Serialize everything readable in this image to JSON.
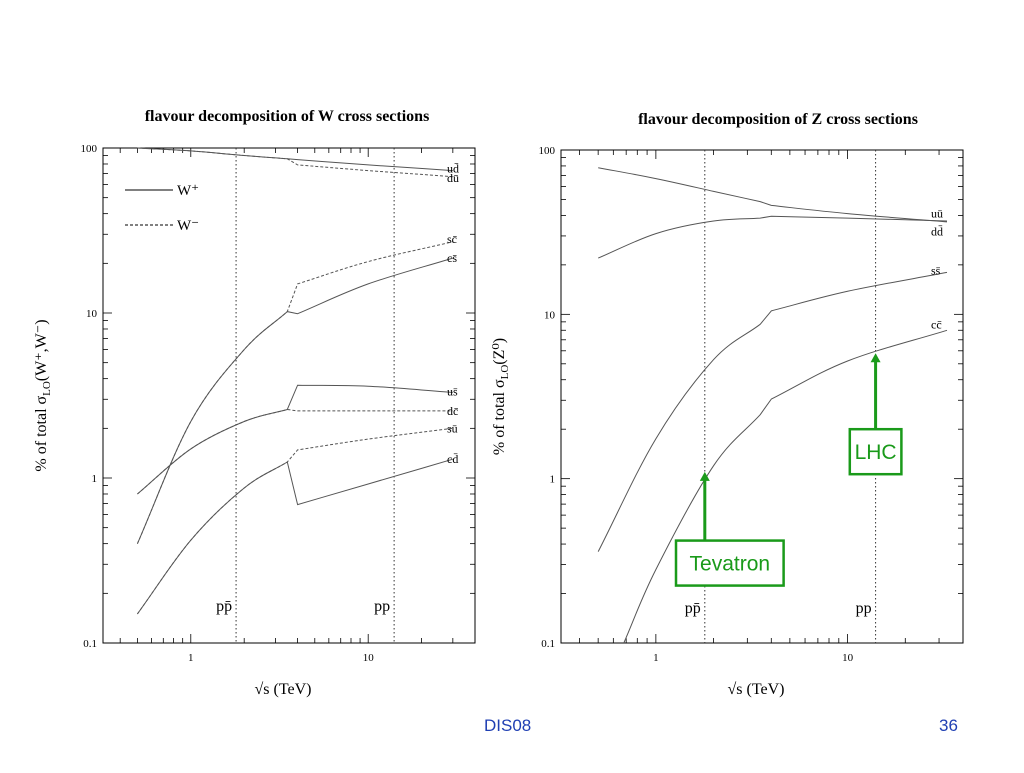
{
  "footer": {
    "center": "DIS08",
    "page": "36"
  },
  "colors": {
    "annotation": "#1a9a1a",
    "footer": "#1f3fb3",
    "curve": "#555555"
  },
  "chart_data": [
    {
      "id": "w",
      "type": "line",
      "title": "flavour decomposition of W cross sections",
      "xlabel": "√s   (TeV)",
      "ylabel_prefix": "% of total  σ",
      "ylabel_sub": "LO",
      "ylabel_suffix": "(W⁺,W⁻)",
      "x_scale": "log",
      "y_scale": "log",
      "xlim": [
        0.32,
        40
      ],
      "ylim": [
        0.1,
        100
      ],
      "x_ticks": [
        {
          "value": 1,
          "label": "1"
        },
        {
          "value": 10,
          "label": "10"
        }
      ],
      "y_ticks": [
        {
          "value": 0.1,
          "label": "0.1"
        },
        {
          "value": 1,
          "label": "1"
        },
        {
          "value": 10,
          "label": "10"
        },
        {
          "value": 100,
          "label": "100"
        }
      ],
      "vlines": [
        {
          "x": 1.8,
          "label": "pp̄"
        },
        {
          "x": 14,
          "label": "pp"
        }
      ],
      "legend": [
        {
          "name": "W⁺",
          "style": "solid"
        },
        {
          "name": "W⁻",
          "style": "dashed"
        }
      ],
      "series": [
        {
          "style": "solid",
          "points": [
            [
              0.5,
              100
            ],
            [
              1,
              96
            ],
            [
              2,
              90
            ],
            [
              3.5,
              86
            ],
            [
              4,
              85
            ],
            [
              10,
              79
            ],
            [
              30,
              73
            ]
          ]
        },
        {
          "style": "dashed",
          "points": [
            [
              0.5,
              100
            ],
            [
              1,
              96
            ],
            [
              2,
              90
            ],
            [
              3.5,
              86
            ],
            [
              4,
              79
            ],
            [
              10,
              73
            ],
            [
              30,
              67
            ]
          ]
        },
        {
          "style": "dashed",
          "points": [
            [
              0.5,
              0.4
            ],
            [
              1,
              2.2
            ],
            [
              2,
              6.0
            ],
            [
              3.5,
              10.2
            ],
            [
              4,
              15
            ],
            [
              10,
              20.5
            ],
            [
              30,
              27
            ]
          ]
        },
        {
          "style": "solid",
          "points": [
            [
              0.5,
              0.4
            ],
            [
              1,
              2.2
            ],
            [
              2,
              6.0
            ],
            [
              3.5,
              10.2
            ],
            [
              4,
              9.9
            ],
            [
              10,
              15
            ],
            [
              30,
              21.5
            ]
          ]
        },
        {
          "style": "solid",
          "points": [
            [
              0.5,
              0.8
            ],
            [
              1,
              1.5
            ],
            [
              2,
              2.2
            ],
            [
              3.5,
              2.6
            ],
            [
              4,
              3.65
            ],
            [
              10,
              3.6
            ],
            [
              30,
              3.3
            ]
          ]
        },
        {
          "style": "dashed",
          "points": [
            [
              0.5,
              0.8
            ],
            [
              1,
              1.5
            ],
            [
              2,
              2.2
            ],
            [
              3.5,
              2.6
            ],
            [
              4,
              2.55
            ],
            [
              10,
              2.55
            ],
            [
              30,
              2.55
            ]
          ]
        },
        {
          "style": "dashed",
          "points": [
            [
              0.5,
              0.15
            ],
            [
              1,
              0.42
            ],
            [
              2,
              0.87
            ],
            [
              3.5,
              1.25
            ],
            [
              4,
              1.48
            ],
            [
              10,
              1.72
            ],
            [
              30,
              2.0
            ]
          ]
        },
        {
          "style": "solid",
          "points": [
            [
              0.5,
              0.15
            ],
            [
              1,
              0.42
            ],
            [
              2,
              0.87
            ],
            [
              3.5,
              1.25
            ],
            [
              4,
              0.69
            ],
            [
              10,
              0.92
            ],
            [
              30,
              1.3
            ]
          ]
        }
      ],
      "curve_labels": [
        {
          "text": "ud̄",
          "y": 75
        },
        {
          "text": "dū",
          "y": 66
        },
        {
          "text": "sc̄",
          "y": 28
        },
        {
          "text": "cs̄",
          "y": 21.5
        },
        {
          "text": "us̄",
          "y": 3.35
        },
        {
          "text": "dc̄",
          "y": 2.55
        },
        {
          "text": "sū",
          "y": 2.0
        },
        {
          "text": "cd̄",
          "y": 1.3
        }
      ]
    },
    {
      "id": "z",
      "type": "line",
      "title": "flavour decomposition of Z cross sections",
      "xlabel": "√s   (TeV)",
      "ylabel_prefix": "% of total  σ",
      "ylabel_sub": "LO",
      "ylabel_suffix": "(Z⁰)",
      "x_scale": "log",
      "y_scale": "log",
      "xlim": [
        0.32,
        40
      ],
      "ylim": [
        0.1,
        100
      ],
      "x_ticks": [
        {
          "value": 1,
          "label": "1"
        },
        {
          "value": 10,
          "label": "10"
        }
      ],
      "y_ticks": [
        {
          "value": 0.1,
          "label": "0.1"
        },
        {
          "value": 1,
          "label": "1"
        },
        {
          "value": 10,
          "label": "10"
        },
        {
          "value": 100,
          "label": "100"
        }
      ],
      "vlines": [
        {
          "x": 1.8,
          "label": "pp̄"
        },
        {
          "x": 14,
          "label": "pp"
        }
      ],
      "legend": [],
      "series": [
        {
          "style": "solid",
          "points": [
            [
              0.5,
              78
            ],
            [
              1,
              67
            ],
            [
              2,
              56
            ],
            [
              3.5,
              48.5
            ],
            [
              4,
              46
            ],
            [
              10,
              41
            ],
            [
              33,
              36.5
            ]
          ]
        },
        {
          "style": "solid",
          "points": [
            [
              0.5,
              22
            ],
            [
              1,
              31
            ],
            [
              2,
              37
            ],
            [
              3.5,
              38.5
            ],
            [
              4,
              39.5
            ],
            [
              10,
              38.5
            ],
            [
              33,
              37
            ]
          ]
        },
        {
          "style": "solid",
          "points": [
            [
              0.5,
              0.36
            ],
            [
              1,
              1.75
            ],
            [
              2,
              5.3
            ],
            [
              3.5,
              8.7
            ],
            [
              4,
              10.5
            ],
            [
              10,
              13.8
            ],
            [
              33,
              18
            ]
          ]
        },
        {
          "style": "solid",
          "points": [
            [
              0.68,
              0.1
            ],
            [
              1,
              0.28
            ],
            [
              2,
              1.2
            ],
            [
              3.5,
              2.45
            ],
            [
              4,
              3.05
            ],
            [
              10,
              5.2
            ],
            [
              33,
              8.0
            ]
          ]
        }
      ],
      "curve_labels": [
        {
          "text": "uū",
          "y": 41
        },
        {
          "text": "dd̄",
          "y": 32
        },
        {
          "text": "ss̄",
          "y": 18.5
        },
        {
          "text": "cc̄",
          "y": 8.7
        }
      ],
      "annotations": [
        {
          "text": "Tevatron",
          "arrow_x": 1.8,
          "arrow_tip_y": 1.1,
          "arrow_base_y": 0.42
        },
        {
          "text": "LHC",
          "arrow_x": 14,
          "arrow_tip_y": 5.8,
          "arrow_base_y": 2.0
        }
      ]
    }
  ]
}
